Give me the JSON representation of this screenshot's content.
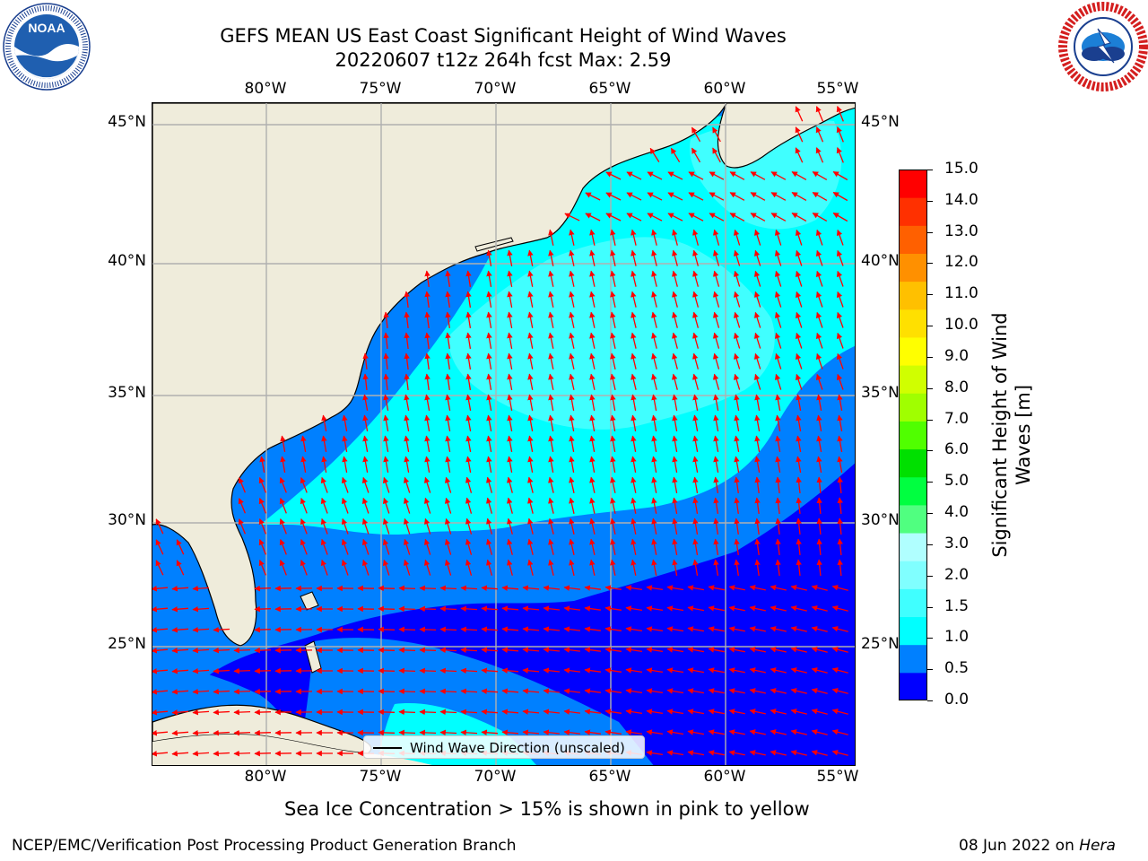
{
  "title": {
    "line1": "GEFS MEAN US East Coast Significant Height of Wind Waves",
    "line2": "20220607 t12z 264h fcst   Max: 2.59"
  },
  "logos": {
    "noaa_text": "NOAA",
    "noaa_ring": "NATIONAL OCEANIC AND ATMOSPHERIC ADMINISTRATION · U.S. DEPARTMENT OF COMMERCE",
    "nws_ring": "NATIONAL WEATHER SERVICE"
  },
  "map": {
    "lon_labels": [
      "80°W",
      "75°W",
      "70°W",
      "65°W",
      "60°W",
      "55°W"
    ],
    "lat_labels": [
      "45°N",
      "40°N",
      "35°N",
      "30°N",
      "25°N"
    ],
    "legend": "Wind Wave Direction (unscaled)",
    "colors": {
      "land": "#efecdb",
      "coast": "#000000",
      "grid": "#b0b0b0",
      "arrow": "#ff0000"
    }
  },
  "colorbar": {
    "label": "Significant Height of Wind Waves [m]",
    "label_line1": "Significant Height of Wind",
    "label_line2": "Waves [m]",
    "ticks": [
      "15.0",
      "14.0",
      "13.0",
      "12.0",
      "11.0",
      "10.0",
      "9.0",
      "8.0",
      "7.0",
      "6.0",
      "5.0",
      "4.0",
      "3.0",
      "2.0",
      "1.5",
      "1.0",
      "0.5",
      "0.0"
    ],
    "colors_bottom_to_top": [
      "#0000ff",
      "#0080ff",
      "#00ffff",
      "#40ffff",
      "#80ffff",
      "#b0ffff",
      "#50ff80",
      "#00ff40",
      "#00e000",
      "#50ff00",
      "#a0ff00",
      "#d0ff00",
      "#ffff00",
      "#ffe000",
      "#ffc000",
      "#ff9000",
      "#ff6000",
      "#ff3000",
      "#ff0000"
    ]
  },
  "notes": {
    "ice": "Sea Ice Concentration > 15% is shown in pink to yellow",
    "left": "NCEP/EMC/Verification Post Processing Product Generation Branch",
    "date": "08 Jun 2022 on ",
    "host": "Hera"
  }
}
